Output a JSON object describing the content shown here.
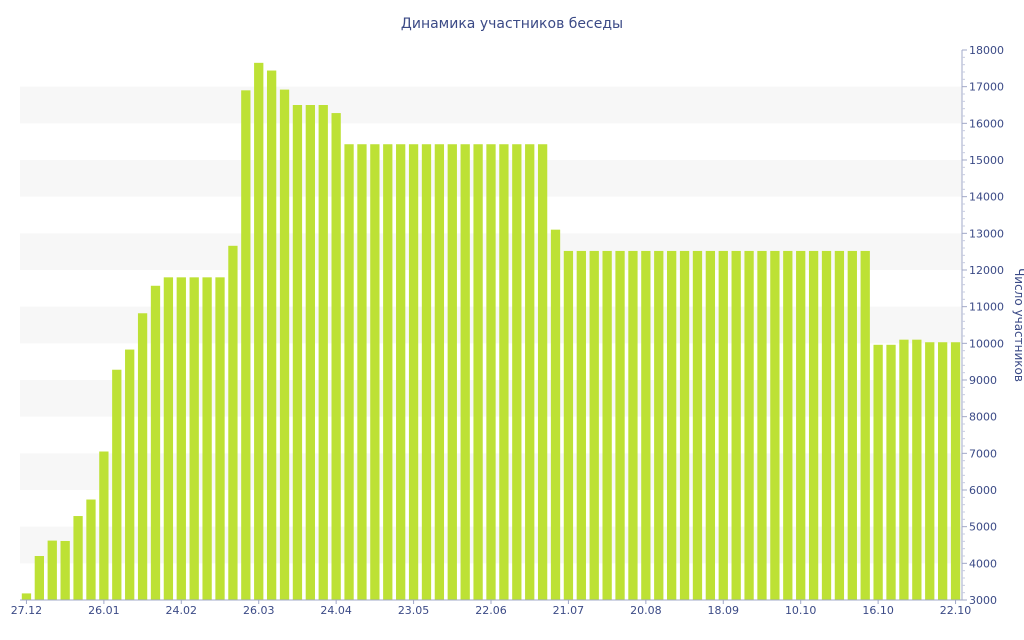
{
  "chart_data": {
    "type": "bar",
    "title": "Динамика участников беседы",
    "xlabel": "",
    "ylabel": "Число участников",
    "ylim": [
      3000,
      18000
    ],
    "y_axis_side": "right",
    "y_ticks": [
      3000,
      4000,
      5000,
      6000,
      7000,
      8000,
      9000,
      10000,
      11000,
      12000,
      13000,
      14000,
      15000,
      16000,
      17000,
      18000
    ],
    "x_tick_labels": [
      {
        "label": "27.12",
        "index": 0
      },
      {
        "label": "26.01",
        "index": 6
      },
      {
        "label": "24.02",
        "index": 12
      },
      {
        "label": "26.03",
        "index": 18
      },
      {
        "label": "24.04",
        "index": 24
      },
      {
        "label": "23.05",
        "index": 30
      },
      {
        "label": "22.06",
        "index": 36
      },
      {
        "label": "21.07",
        "index": 42
      },
      {
        "label": "20.08",
        "index": 48
      },
      {
        "label": "18.09",
        "index": 54
      },
      {
        "label": "10.10",
        "index": 60
      },
      {
        "label": "16.10",
        "index": 66
      },
      {
        "label": "22.10",
        "index": 72
      }
    ],
    "grid": "alternating horizontal bands",
    "bar_color": "#bde135",
    "values": [
      3180,
      4200,
      4620,
      4610,
      5290,
      5740,
      7050,
      9280,
      9830,
      10820,
      11570,
      11800,
      11800,
      11800,
      11800,
      11800,
      12660,
      16900,
      17650,
      17440,
      16920,
      16500,
      16500,
      16500,
      16280,
      15430,
      15430,
      15430,
      15430,
      15430,
      15430,
      15430,
      15430,
      15430,
      15430,
      15430,
      15430,
      15430,
      15430,
      15430,
      15430,
      13100,
      12520,
      12520,
      12520,
      12520,
      12520,
      12520,
      12520,
      12520,
      12520,
      12520,
      12520,
      12520,
      12520,
      12520,
      12520,
      12520,
      12520,
      12520,
      12520,
      12520,
      12520,
      12520,
      12520,
      12520,
      9960,
      9960,
      10100,
      10100,
      10030,
      10030,
      10030
    ]
  }
}
